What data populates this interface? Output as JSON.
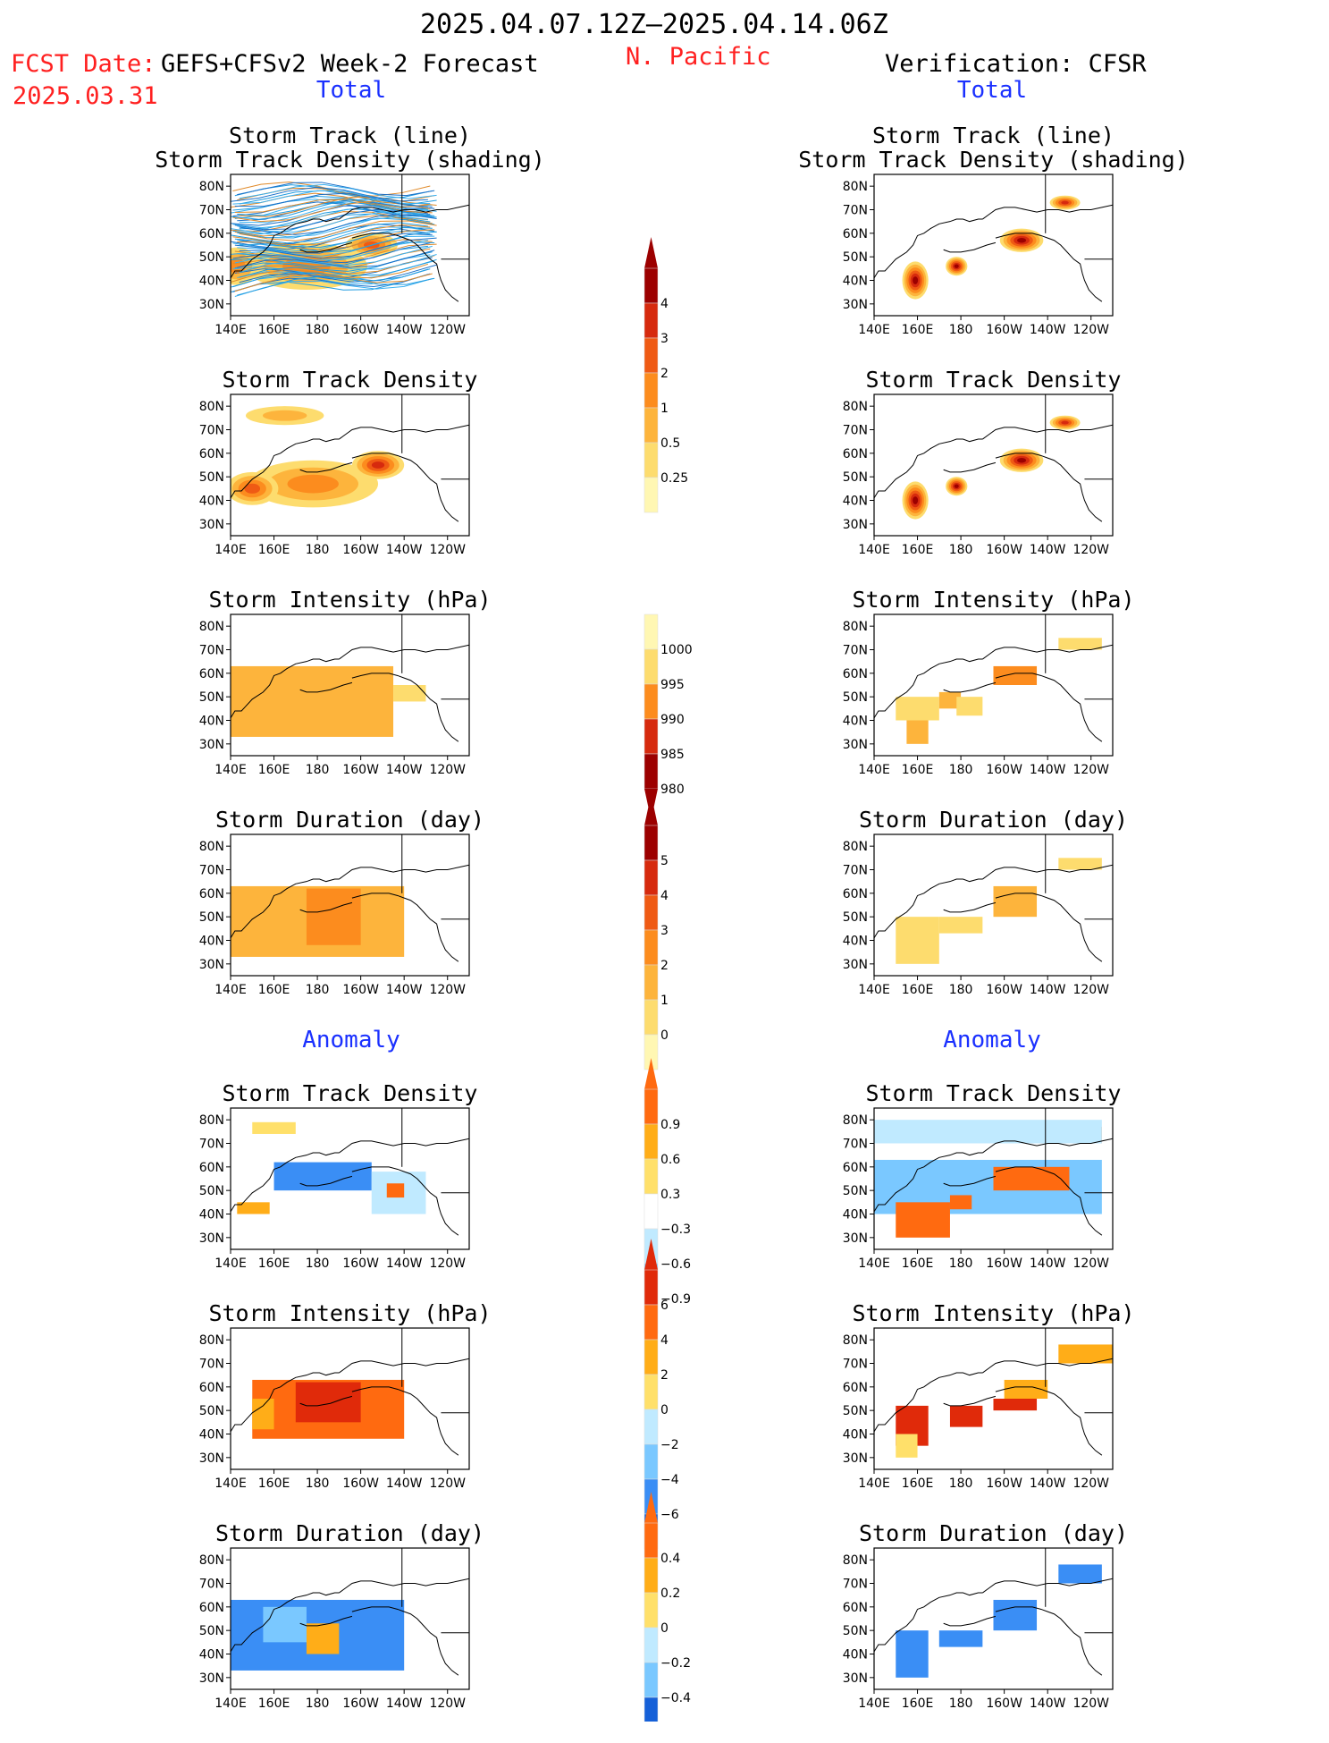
{
  "header": {
    "date_range": "2025.04.07.12Z–2025.04.14.06Z",
    "fcst_label": "FCST Date:",
    "fcst_date": "2025.03.31",
    "model": "GEFS+CFSv2 Week-2 Forecast",
    "region": "N. Pacific",
    "verification": "Verification: CFSR"
  },
  "sections": {
    "total": "Total",
    "anomaly": "Anomaly"
  },
  "colors": {
    "title_red": "#ff2020",
    "section_blue": "#1a30ff",
    "total_scale": [
      "#fff7b3",
      "#fddc6e",
      "#fdb43c",
      "#fc8c1e",
      "#ef5a14",
      "#d62a0e",
      "#9c0000"
    ],
    "anom_pos": [
      "#ffe06a",
      "#ffad18",
      "#ff6a10",
      "#e02a0a",
      "#a00000"
    ],
    "anom_neg": [
      "#c0eaff",
      "#7ac8ff",
      "#3a8ef5",
      "#1560d8"
    ]
  },
  "axes": {
    "lat_ticks": [
      "80N",
      "70N",
      "60N",
      "50N",
      "40N",
      "30N"
    ],
    "lon_ticks": [
      "140E",
      "160E",
      "180",
      "160W",
      "140W",
      "120W"
    ]
  },
  "colorbars": {
    "track_density_total": [
      "4",
      "3",
      "2",
      "1",
      "0.5",
      "0.25"
    ],
    "intensity_total": [
      "1000",
      "995",
      "990",
      "985",
      "980"
    ],
    "duration_total": [
      "5",
      "4",
      "3",
      "2",
      "1",
      "0"
    ],
    "track_density_anom": [
      "0.9",
      "0.6",
      "0.3",
      "−0.3",
      "−0.6",
      "−0.9"
    ],
    "intensity_anom": [
      "6",
      "4",
      "2",
      "0",
      "−2",
      "−4",
      "−6"
    ],
    "duration_anom": [
      "0.4",
      "0.2",
      "0",
      "−0.2",
      "−0.4"
    ]
  },
  "chart_data": [
    {
      "type": "heatmap",
      "column": "forecast",
      "group": "Total",
      "title": "Storm Track (line) Storm Track Density (shading)",
      "title_lines": [
        "Storm Track (line)",
        "Storm Track Density (shading)"
      ],
      "blobs": [
        [
          175,
          46,
          28,
          10,
          2
        ],
        [
          143,
          46,
          10,
          8,
          2
        ],
        [
          205,
          55,
          12,
          5,
          3
        ]
      ],
      "tracks": true
    },
    {
      "type": "heatmap",
      "column": "forecast",
      "group": "Total",
      "title": "Storm Track Density",
      "title_lines": [
        "Storm Track Density"
      ],
      "blobs": [
        [
          178,
          47,
          30,
          10,
          2
        ],
        [
          208,
          55,
          12,
          6,
          4
        ],
        [
          150,
          45,
          12,
          7,
          3
        ],
        [
          165,
          76,
          18,
          4,
          1
        ]
      ]
    },
    {
      "type": "heatmap",
      "column": "forecast",
      "group": "Total",
      "title": "Storm Intensity (hPa)",
      "title_lines": [
        "Storm Intensity (hPa)"
      ],
      "blocks": [
        [
          140,
          215,
          33,
          63,
          2
        ],
        [
          215,
          230,
          48,
          55,
          1
        ]
      ]
    },
    {
      "type": "heatmap",
      "column": "forecast",
      "group": "Total",
      "title": "Storm Duration (day)",
      "title_lines": [
        "Storm Duration (day)"
      ],
      "blocks": [
        [
          140,
          220,
          33,
          63,
          2
        ],
        [
          175,
          200,
          38,
          62,
          3
        ]
      ]
    },
    {
      "type": "heatmap",
      "column": "forecast",
      "group": "Anomaly",
      "title": "Storm Track Density",
      "title_lines": [
        "Storm Track Density"
      ],
      "anom": [
        [
          160,
          205,
          50,
          62,
          -3
        ],
        [
          205,
          230,
          40,
          58,
          -1
        ],
        [
          212,
          220,
          47,
          53,
          3
        ],
        [
          143,
          158,
          40,
          45,
          2
        ],
        [
          150,
          170,
          74,
          79,
          1
        ]
      ]
    },
    {
      "type": "heatmap",
      "column": "forecast",
      "group": "Anomaly",
      "title": "Storm Intensity (hPa)",
      "title_lines": [
        "Storm Intensity (hPa)"
      ],
      "anom": [
        [
          150,
          220,
          38,
          63,
          3
        ],
        [
          170,
          200,
          45,
          62,
          4
        ],
        [
          150,
          160,
          42,
          55,
          2
        ]
      ]
    },
    {
      "type": "heatmap",
      "column": "forecast",
      "group": "Anomaly",
      "title": "Storm Duration (day)",
      "title_lines": [
        "Storm Duration (day)"
      ],
      "anom": [
        [
          140,
          220,
          33,
          63,
          -3
        ],
        [
          175,
          190,
          40,
          53,
          2
        ],
        [
          155,
          175,
          45,
          60,
          -2
        ]
      ]
    },
    {
      "type": "heatmap",
      "column": "verification",
      "group": "Total",
      "title": "Storm Track Density (shading)",
      "title_lines": [
        "Storm Track (line)",
        "Storm Track Density (shading)"
      ],
      "blobs": [
        [
          159,
          40,
          6,
          8,
          5
        ],
        [
          178,
          46,
          5,
          4,
          5
        ],
        [
          208,
          57,
          10,
          5,
          5
        ],
        [
          228,
          73,
          7,
          3,
          4
        ]
      ]
    },
    {
      "type": "heatmap",
      "column": "verification",
      "group": "Total",
      "title": "Storm Track Density",
      "title_lines": [
        "Storm Track Density"
      ],
      "blobs": [
        [
          159,
          40,
          6,
          8,
          5
        ],
        [
          178,
          46,
          5,
          4,
          5
        ],
        [
          208,
          57,
          10,
          5,
          5
        ],
        [
          228,
          73,
          7,
          3,
          4
        ]
      ]
    },
    {
      "type": "heatmap",
      "column": "verification",
      "group": "Total",
      "title": "Storm Intensity (hPa)",
      "title_lines": [
        "Storm Intensity (hPa)"
      ],
      "blocks": [
        [
          155,
          165,
          30,
          45,
          2
        ],
        [
          150,
          170,
          40,
          50,
          1
        ],
        [
          170,
          180,
          45,
          52,
          2
        ],
        [
          178,
          190,
          42,
          50,
          1
        ],
        [
          195,
          215,
          55,
          63,
          3
        ],
        [
          225,
          245,
          70,
          75,
          1
        ]
      ]
    },
    {
      "type": "heatmap",
      "column": "verification",
      "group": "Total",
      "title": "Storm Duration (day)",
      "title_lines": [
        "Storm Duration (day)"
      ],
      "blocks": [
        [
          150,
          170,
          30,
          50,
          1
        ],
        [
          170,
          190,
          43,
          50,
          1
        ],
        [
          195,
          215,
          50,
          63,
          2
        ],
        [
          225,
          245,
          70,
          75,
          1
        ]
      ]
    },
    {
      "type": "heatmap",
      "column": "verification",
      "group": "Anomaly",
      "title": "Storm Track Density",
      "title_lines": [
        "Storm Track Density"
      ],
      "anom": [
        [
          140,
          245,
          40,
          63,
          -2
        ],
        [
          150,
          175,
          30,
          45,
          3
        ],
        [
          195,
          230,
          50,
          60,
          3
        ],
        [
          225,
          245,
          70,
          77,
          3
        ],
        [
          175,
          185,
          42,
          48,
          3
        ],
        [
          140,
          245,
          70,
          80,
          -1
        ]
      ]
    },
    {
      "type": "heatmap",
      "column": "verification",
      "group": "Anomaly",
      "title": "Storm Intensity (hPa)",
      "title_lines": [
        "Storm Intensity (hPa)"
      ],
      "anom": [
        [
          150,
          165,
          35,
          52,
          4
        ],
        [
          175,
          190,
          43,
          52,
          4
        ],
        [
          195,
          215,
          50,
          55,
          4
        ],
        [
          200,
          220,
          55,
          63,
          2
        ],
        [
          225,
          250,
          70,
          78,
          2
        ],
        [
          150,
          160,
          30,
          40,
          1
        ]
      ]
    },
    {
      "type": "heatmap",
      "column": "verification",
      "group": "Anomaly",
      "title": "Storm Duration (day)",
      "title_lines": [
        "Storm Duration (day)"
      ],
      "anom": [
        [
          150,
          165,
          30,
          50,
          -3
        ],
        [
          170,
          190,
          43,
          50,
          -3
        ],
        [
          195,
          215,
          50,
          63,
          -3
        ],
        [
          225,
          245,
          70,
          78,
          -3
        ]
      ]
    }
  ]
}
